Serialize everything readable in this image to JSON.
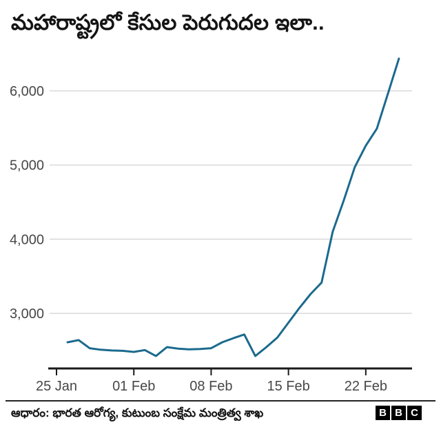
{
  "title": "మహారాష్ట్రలో కేసుల పెరుగుదల ఇలా..",
  "footer": {
    "source": "ఆధారం: భారత ఆరోగ్య, కుటుంబ సంక్షేమ మంత్రిత్వ శాఖ",
    "logo_letters": [
      "B",
      "B",
      "C"
    ]
  },
  "colors": {
    "line": "#1b6a8d",
    "grid": "#d9d9d9",
    "axis": "#1a1a1a",
    "tick_label": "#474747",
    "background": "#ffffff"
  },
  "chart_data": {
    "type": "line",
    "title": "మహారాష్ట్రలో కేసుల పెరుగుదల ఇలా..",
    "x": [
      "26 Jan",
      "27 Jan",
      "28 Jan",
      "29 Jan",
      "30 Jan",
      "31 Jan",
      "01 Feb",
      "02 Feb",
      "03 Feb",
      "04 Feb",
      "05 Feb",
      "06 Feb",
      "07 Feb",
      "08 Feb",
      "09 Feb",
      "10 Feb",
      "11 Feb",
      "12 Feb",
      "13 Feb",
      "14 Feb",
      "15 Feb",
      "16 Feb",
      "17 Feb",
      "18 Feb",
      "19 Feb",
      "20 Feb",
      "21 Feb",
      "22 Feb",
      "23 Feb",
      "24 Feb",
      "25 Feb"
    ],
    "values": [
      2610,
      2640,
      2530,
      2510,
      2500,
      2495,
      2480,
      2505,
      2425,
      2545,
      2525,
      2515,
      2520,
      2530,
      2610,
      2665,
      2715,
      2425,
      2545,
      2675,
      2875,
      3075,
      3260,
      3415,
      4100,
      4520,
      4970,
      5260,
      5490,
      5960,
      6435
    ],
    "x_tick_labels": [
      "25 Jan",
      "01 Feb",
      "08 Feb",
      "15 Feb",
      "22 Feb"
    ],
    "x_tick_day_offsets": [
      0,
      7,
      14,
      21,
      28
    ],
    "y_ticks": [
      3000,
      4000,
      5000,
      6000
    ],
    "y_tick_labels": [
      "3,000",
      "4,000",
      "5,000",
      "6,000"
    ],
    "ylim": [
      2280,
      6550
    ],
    "grid": "horizontal-only",
    "legend": "none"
  }
}
